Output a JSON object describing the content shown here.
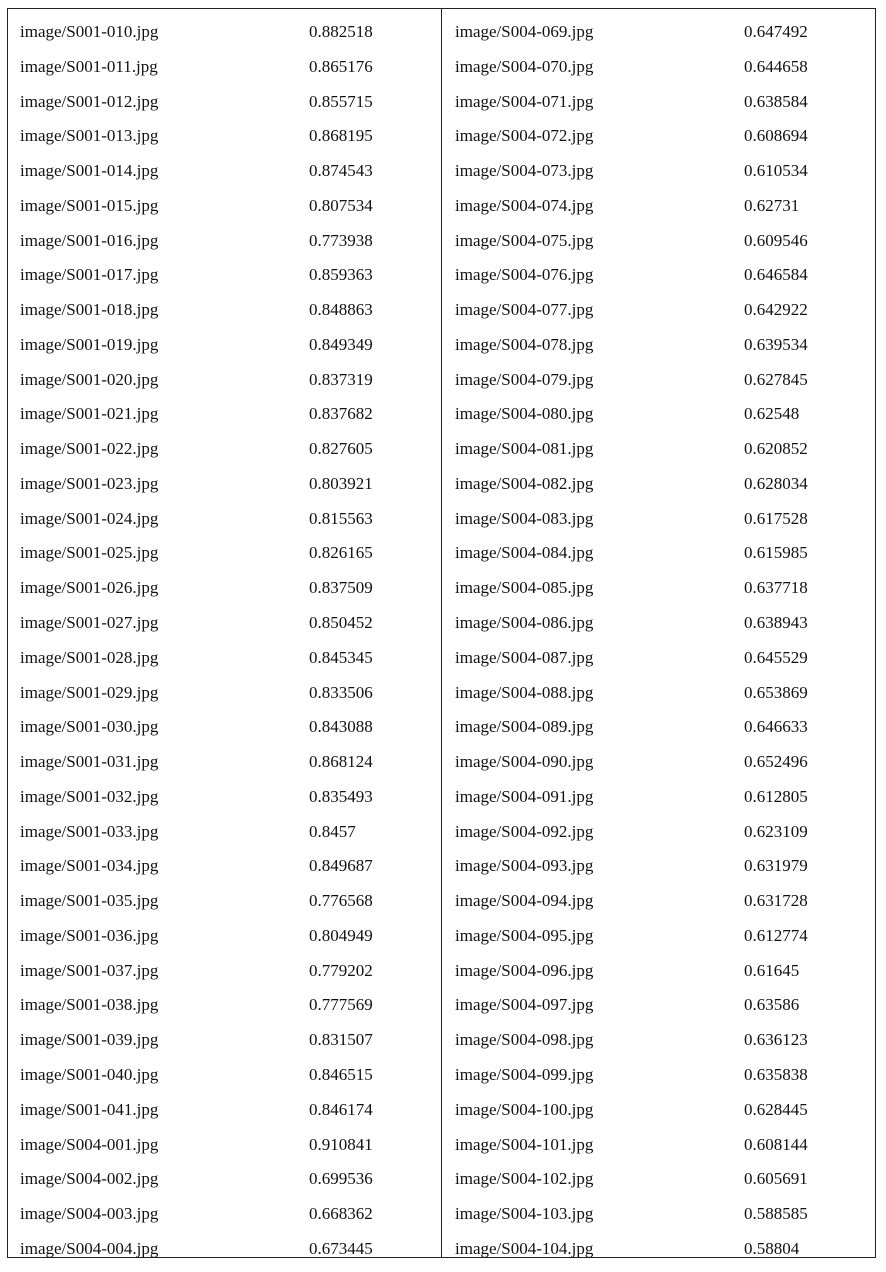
{
  "left_column": [
    {
      "file": "image/S001-010.jpg",
      "score": "0.882518"
    },
    {
      "file": "image/S001-011.jpg",
      "score": "0.865176"
    },
    {
      "file": "image/S001-012.jpg",
      "score": "0.855715"
    },
    {
      "file": "image/S001-013.jpg",
      "score": "0.868195"
    },
    {
      "file": "image/S001-014.jpg",
      "score": "0.874543"
    },
    {
      "file": "image/S001-015.jpg",
      "score": "0.807534"
    },
    {
      "file": "image/S001-016.jpg",
      "score": "0.773938"
    },
    {
      "file": "image/S001-017.jpg",
      "score": "0.859363"
    },
    {
      "file": "image/S001-018.jpg",
      "score": "0.848863"
    },
    {
      "file": "image/S001-019.jpg",
      "score": "0.849349"
    },
    {
      "file": "image/S001-020.jpg",
      "score": "0.837319"
    },
    {
      "file": "image/S001-021.jpg",
      "score": "0.837682"
    },
    {
      "file": "image/S001-022.jpg",
      "score": "0.827605"
    },
    {
      "file": "image/S001-023.jpg",
      "score": "0.803921"
    },
    {
      "file": "image/S001-024.jpg",
      "score": "0.815563"
    },
    {
      "file": "image/S001-025.jpg",
      "score": "0.826165"
    },
    {
      "file": "image/S001-026.jpg",
      "score": "0.837509"
    },
    {
      "file": "image/S001-027.jpg",
      "score": "0.850452"
    },
    {
      "file": "image/S001-028.jpg",
      "score": "0.845345"
    },
    {
      "file": "image/S001-029.jpg",
      "score": "0.833506"
    },
    {
      "file": "image/S001-030.jpg",
      "score": "0.843088"
    },
    {
      "file": "image/S001-031.jpg",
      "score": "0.868124"
    },
    {
      "file": "image/S001-032.jpg",
      "score": "0.835493"
    },
    {
      "file": "image/S001-033.jpg",
      "score": "0.8457"
    },
    {
      "file": "image/S001-034.jpg",
      "score": "0.849687"
    },
    {
      "file": "image/S001-035.jpg",
      "score": "0.776568"
    },
    {
      "file": "image/S001-036.jpg",
      "score": "0.804949"
    },
    {
      "file": "image/S001-037.jpg",
      "score": "0.779202"
    },
    {
      "file": "image/S001-038.jpg",
      "score": "0.777569"
    },
    {
      "file": "image/S001-039.jpg",
      "score": "0.831507"
    },
    {
      "file": "image/S001-040.jpg",
      "score": "0.846515"
    },
    {
      "file": "image/S001-041.jpg",
      "score": "0.846174"
    },
    {
      "file": "image/S004-001.jpg",
      "score": "0.910841"
    },
    {
      "file": "image/S004-002.jpg",
      "score": "0.699536"
    },
    {
      "file": "image/S004-003.jpg",
      "score": "0.668362"
    },
    {
      "file": "image/S004-004.jpg",
      "score": "0.673445"
    }
  ],
  "right_column": [
    {
      "file": "image/S004-069.jpg",
      "score": "0.647492"
    },
    {
      "file": "image/S004-070.jpg",
      "score": "0.644658"
    },
    {
      "file": "image/S004-071.jpg",
      "score": "0.638584"
    },
    {
      "file": "image/S004-072.jpg",
      "score": "0.608694"
    },
    {
      "file": "image/S004-073.jpg",
      "score": "0.610534"
    },
    {
      "file": "image/S004-074.jpg",
      "score": "0.62731"
    },
    {
      "file": "image/S004-075.jpg",
      "score": "0.609546"
    },
    {
      "file": "image/S004-076.jpg",
      "score": "0.646584"
    },
    {
      "file": "image/S004-077.jpg",
      "score": "0.642922"
    },
    {
      "file": "image/S004-078.jpg",
      "score": "0.639534"
    },
    {
      "file": "image/S004-079.jpg",
      "score": "0.627845"
    },
    {
      "file": "image/S004-080.jpg",
      "score": "0.62548"
    },
    {
      "file": "image/S004-081.jpg",
      "score": "0.620852"
    },
    {
      "file": "image/S004-082.jpg",
      "score": "0.628034"
    },
    {
      "file": "image/S004-083.jpg",
      "score": "0.617528"
    },
    {
      "file": "image/S004-084.jpg",
      "score": "0.615985"
    },
    {
      "file": "image/S004-085.jpg",
      "score": "0.637718"
    },
    {
      "file": "image/S004-086.jpg",
      "score": "0.638943"
    },
    {
      "file": "image/S004-087.jpg",
      "score": "0.645529"
    },
    {
      "file": "image/S004-088.jpg",
      "score": "0.653869"
    },
    {
      "file": "image/S004-089.jpg",
      "score": "0.646633"
    },
    {
      "file": "image/S004-090.jpg",
      "score": "0.652496"
    },
    {
      "file": "image/S004-091.jpg",
      "score": "0.612805"
    },
    {
      "file": "image/S004-092.jpg",
      "score": "0.623109"
    },
    {
      "file": "image/S004-093.jpg",
      "score": "0.631979"
    },
    {
      "file": "image/S004-094.jpg",
      "score": "0.631728"
    },
    {
      "file": "image/S004-095.jpg",
      "score": "0.612774"
    },
    {
      "file": "image/S004-096.jpg",
      "score": "0.61645"
    },
    {
      "file": "image/S004-097.jpg",
      "score": "0.63586"
    },
    {
      "file": "image/S004-098.jpg",
      "score": "0.636123"
    },
    {
      "file": "image/S004-099.jpg",
      "score": "0.635838"
    },
    {
      "file": "image/S004-100.jpg",
      "score": "0.628445"
    },
    {
      "file": "image/S004-101.jpg",
      "score": "0.608144"
    },
    {
      "file": "image/S004-102.jpg",
      "score": "0.605691"
    },
    {
      "file": "image/S004-103.jpg",
      "score": "0.588585"
    },
    {
      "file": "image/S004-104.jpg",
      "score": "0.58804"
    }
  ]
}
